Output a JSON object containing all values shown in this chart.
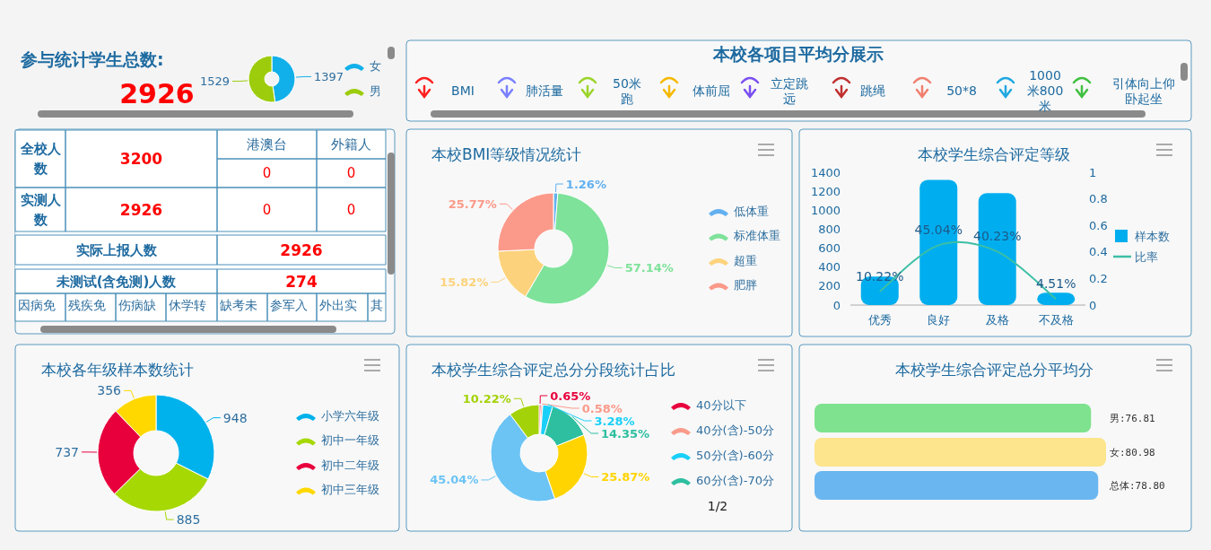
{
  "chart_data": [
    {
      "type": "other",
      "title": "参与统计学生总数:",
      "annotations": [
        "2926"
      ]
    },
    {
      "type": "donut",
      "categories": [
        "女",
        "男"
      ],
      "values": [
        1397,
        1529
      ],
      "colors": [
        "#12b0ea",
        "#9ccc0c"
      ],
      "data_labels": true,
      "legend": "right"
    },
    {
      "type": "other",
      "annotations": [
        "全校人数",
        "3200",
        "港澳台",
        "外籍人",
        "0",
        "0",
        "实测人数",
        "2926",
        "0",
        "0",
        "实际上报人数",
        "2926",
        "未测试(含免测)人数",
        "274",
        "因病免",
        "残疾免",
        "伤病缺",
        "休学转",
        "缺考未",
        "参军入",
        "外出实",
        "其"
      ]
    },
    {
      "type": "other",
      "title": "本校各项目平均分展示",
      "annotations": [
        "BMI",
        "肺活量",
        "50米跑",
        "体前屈",
        "立定跳远",
        "跳绳",
        "50*8",
        "1000米800米",
        "引体向上仰卧起坐"
      ]
    },
    {
      "type": "donut",
      "title": "本校BMI等级情况统计",
      "categories": [
        "低体重",
        "标准体重",
        "超重",
        "肥胖"
      ],
      "values": [
        1.26,
        57.14,
        15.82,
        25.77
      ],
      "value_labels": [
        "1.26%",
        "57.14%",
        "15.82%",
        "25.77%"
      ],
      "colors": [
        "#62b0f0",
        "#7ee29a",
        "#fcd37c",
        "#fb9a8a"
      ],
      "legend": "right"
    },
    {
      "type": "bar",
      "title": "本校学生综合评定等级",
      "categories": [
        "优秀",
        "良好",
        "及格",
        "不及格"
      ],
      "series": [
        {
          "name": "样本数",
          "type": "bar",
          "color": "#00aeef",
          "values": [
            300,
            1320,
            1180,
            130
          ]
        },
        {
          "name": "比率",
          "type": "line",
          "axis": "y2",
          "color": "#3cbfa5",
          "values": [
            0.1022,
            0.4504,
            0.4023,
            0.0451
          ],
          "value_labels": [
            "10.22%",
            "45.04%",
            "40.23%",
            "4.51%"
          ]
        }
      ],
      "ylim": [
        0,
        1400
      ],
      "yticks": [
        0,
        200,
        400,
        600,
        800,
        1000,
        1200,
        1400
      ],
      "y2lim": [
        0,
        1
      ],
      "y2ticks": [
        0,
        0.2,
        0.4,
        0.6,
        0.8,
        1
      ],
      "legend": "right"
    },
    {
      "type": "donut",
      "title": "本校各年级样本数统计",
      "categories": [
        "小学六年级",
        "初中一年级",
        "初中二年级",
        "初中三年级"
      ],
      "values": [
        948,
        885,
        737,
        356
      ],
      "colors": [
        "#00b2ec",
        "#a6d804",
        "#e8003d",
        "#ffd800"
      ],
      "data_labels": true,
      "legend": "right"
    },
    {
      "type": "donut",
      "title": "本校学生综合评定总分分段统计占比",
      "categories": [
        "40分以下",
        "40分(含)-50分",
        "50分(含)-60分",
        "60分(含)-70分",
        null,
        null,
        null
      ],
      "values": [
        0.65,
        0.58,
        3.28,
        14.35,
        25.87,
        45.04,
        10.22
      ],
      "value_labels": [
        "0.65%",
        "0.58%",
        "3.28%",
        "14.35%",
        "25.87%",
        "45.04%",
        "10.22%"
      ],
      "colors": [
        "#e8003d",
        "#fa9a8a",
        "#1ad0f8",
        "#2dbfa0",
        "#ffd400",
        "#6cc4f4",
        "#a4d208"
      ],
      "legend": "right",
      "annotations": [
        "1/2"
      ]
    },
    {
      "type": "bar",
      "title": "本校学生综合评定总分平均分",
      "orientation": "horizontal",
      "categories": [
        null,
        null,
        null
      ],
      "values": [
        76.81,
        80.98,
        78.8
      ],
      "value_labels": [
        "男:76.81",
        "女:80.98",
        "总体:78.80"
      ],
      "colors": [
        "#7ee28e",
        "#fce58c",
        "#6ab6f0"
      ]
    }
  ]
}
